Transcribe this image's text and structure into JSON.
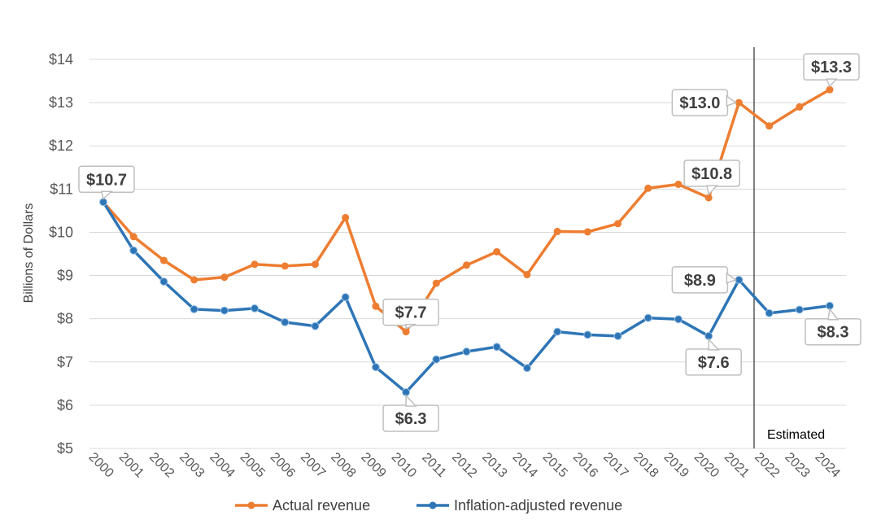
{
  "chart_data": {
    "type": "line",
    "title": "",
    "xlabel": "",
    "ylabel": "Billions of Dollars",
    "ylim": [
      5,
      14
    ],
    "y_ticks": [
      5,
      6,
      7,
      8,
      9,
      10,
      11,
      12,
      13,
      14
    ],
    "y_tick_labels": [
      "$5",
      "$6",
      "$7",
      "$8",
      "$9",
      "$10",
      "$11",
      "$12",
      "$13",
      "$14"
    ],
    "x": [
      "2000",
      "2001",
      "2002",
      "2003",
      "2004",
      "2005",
      "2006",
      "2007",
      "2008",
      "2009",
      "2010",
      "2011",
      "2012",
      "2013",
      "2014",
      "2015",
      "2016",
      "2017",
      "2018",
      "2019",
      "2020",
      "2021",
      "2022",
      "2023",
      "2024"
    ],
    "series": [
      {
        "name": "Actual revenue",
        "color": "#ED7D31",
        "values": [
          10.7,
          9.9,
          9.35,
          8.9,
          8.96,
          9.26,
          9.22,
          9.26,
          10.34,
          8.29,
          7.7,
          8.82,
          9.24,
          9.55,
          9.02,
          10.02,
          10.01,
          10.2,
          11.02,
          11.11,
          10.8,
          13.0,
          12.46,
          12.9,
          13.3
        ]
      },
      {
        "name": "Inflation-adjusted revenue",
        "color": "#2E75B6",
        "values": [
          10.7,
          9.58,
          8.86,
          8.22,
          8.19,
          8.24,
          7.92,
          7.83,
          8.5,
          6.88,
          6.3,
          7.06,
          7.24,
          7.35,
          6.86,
          7.7,
          7.63,
          7.6,
          8.02,
          7.99,
          7.6,
          8.9,
          8.13,
          8.21,
          8.3
        ]
      }
    ],
    "annotations": [
      {
        "series": 0,
        "x": "2000",
        "label": "$10.7"
      },
      {
        "series": 0,
        "x": "2010",
        "label": "$7.7"
      },
      {
        "series": 0,
        "x": "2020",
        "label": "$10.8"
      },
      {
        "series": 0,
        "x": "2021",
        "label": "$13.0"
      },
      {
        "series": 0,
        "x": "2024",
        "label": "$13.3"
      },
      {
        "series": 1,
        "x": "2010",
        "label": "$6.3"
      },
      {
        "series": 1,
        "x": "2020",
        "label": "$7.6"
      },
      {
        "series": 1,
        "x": "2021",
        "label": "$8.9"
      },
      {
        "series": 1,
        "x": "2024",
        "label": "$8.3"
      }
    ],
    "estimate_divider_after": "2021",
    "estimate_label": "Estimated",
    "grid": true,
    "legend_position": "bottom"
  }
}
